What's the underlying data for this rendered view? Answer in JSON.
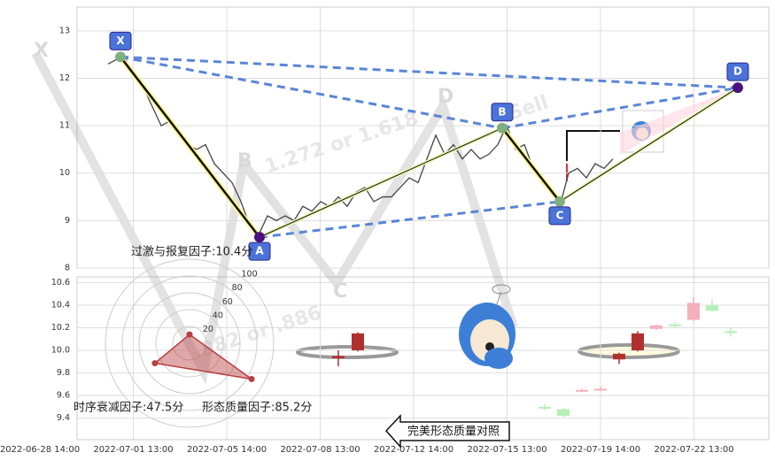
{
  "chart_data": [
    {
      "type": "line",
      "color": "#444",
      "x": [
        0,
        1,
        2,
        3,
        4,
        5,
        6,
        7,
        8,
        9,
        10,
        11,
        12,
        13,
        14,
        15,
        16,
        17,
        18,
        19,
        20,
        21,
        22,
        23,
        24,
        25,
        26,
        27,
        28,
        29,
        30,
        31,
        32,
        33,
        34,
        35,
        36,
        37,
        38,
        39,
        40,
        41,
        42,
        43,
        44,
        45,
        46,
        47,
        48,
        49,
        50,
        51,
        52,
        53,
        54,
        55,
        56,
        57
      ],
      "values": [
        12.3,
        12.4,
        12.4,
        12.0,
        11.8,
        11.4,
        11.0,
        11.1,
        10.8,
        10.6,
        10.5,
        10.6,
        10.2,
        10.0,
        9.8,
        9.4,
        8.9,
        8.7,
        9.1,
        9.0,
        9.1,
        9.0,
        9.3,
        9.2,
        9.4,
        9.3,
        9.5,
        9.3,
        9.6,
        9.7,
        9.4,
        9.5,
        9.5,
        9.7,
        9.9,
        9.8,
        10.3,
        10.8,
        10.4,
        10.6,
        10.3,
        10.5,
        10.3,
        10.4,
        10.6,
        11.0,
        10.5,
        10.6,
        10.1,
        9.8,
        9.6,
        9.3,
        10.0,
        10.1,
        9.9,
        10.2,
        10.1,
        10.3
      ],
      "xlim": [
        -3.5,
        74.6
      ],
      "ylim": [
        8,
        13.5
      ],
      "yticks": [
        8,
        9,
        10,
        11,
        12,
        13
      ],
      "grid": true,
      "pattern": {
        "labels": [
          "X",
          "A",
          "B",
          "C",
          "D"
        ],
        "x": [
          1.4,
          17.1,
          44.5,
          51,
          71.1
        ],
        "values": [
          12.45,
          8.65,
          10.95,
          9.4,
          11.8
        ]
      }
    },
    {
      "type": "candlestick",
      "xlim": [
        -3.5,
        74.6
      ],
      "ylim": [
        9.21,
        10.65
      ],
      "yticks": [
        9.4,
        9.6,
        9.8,
        {
          "value": 10,
          "label": "10.0"
        },
        10.2,
        10.4,
        10.6
      ],
      "grid": true,
      "xtick_labels": [
        "2022-06-28 14:00",
        "2022-07-01 13:00",
        "2022-07-05 14:00",
        "2022-07-08 13:00",
        "2022-07-12 14:00",
        "2022-07-15 13:00",
        "2022-07-19 14:00",
        "2022-07-22 13:00"
      ],
      "candles": [
        {
          "x": 26,
          "open": 9.95,
          "close": 9.93,
          "high": 10.0,
          "low": 9.86,
          "color": "#b03030"
        },
        {
          "x": 28.2,
          "open": 10.0,
          "close": 10.15,
          "high": 10.16,
          "low": 9.99,
          "color": "#b03030"
        },
        {
          "x": 49.3,
          "open": 9.5,
          "close": 9.49,
          "high": 9.52,
          "low": 9.47,
          "color": "#b8efb8"
        },
        {
          "x": 51.4,
          "open": 9.48,
          "close": 9.42,
          "high": 9.49,
          "low": 9.41,
          "color": "#b8efb8"
        },
        {
          "x": 53.5,
          "open": 9.64,
          "close": 9.65,
          "high": 9.66,
          "low": 9.63,
          "color": "#f4b0bc"
        },
        {
          "x": 55.6,
          "open": 9.65,
          "close": 9.66,
          "high": 9.68,
          "low": 9.64,
          "color": "#f4b0bc"
        },
        {
          "x": 57.7,
          "open": 9.97,
          "close": 9.92,
          "high": 9.98,
          "low": 9.88,
          "color": "#b03030"
        },
        {
          "x": 59.8,
          "open": 10.0,
          "close": 10.15,
          "high": 10.17,
          "low": 9.99,
          "color": "#b03030"
        },
        {
          "x": 61.9,
          "open": 10.19,
          "close": 10.22,
          "high": 10.23,
          "low": 10.18,
          "color": "#f4b0bc"
        },
        {
          "x": 64.0,
          "open": 10.22,
          "close": 10.23,
          "high": 10.25,
          "low": 10.2,
          "color": "#b8efb8"
        },
        {
          "x": 66.1,
          "open": 10.27,
          "close": 10.42,
          "high": 10.47,
          "low": 10.26,
          "color": "#f4b0bc"
        },
        {
          "x": 68.2,
          "open": 10.4,
          "close": 10.35,
          "high": 10.45,
          "low": 10.34,
          "color": "#b8efb8"
        },
        {
          "x": 70.3,
          "open": 10.17,
          "close": 10.16,
          "high": 10.2,
          "low": 10.12,
          "color": "#b8efb8"
        }
      ]
    },
    {
      "type": "radar",
      "color": "#b84040",
      "rticks": [
        20,
        40,
        60,
        80,
        100
      ],
      "values": [
        10.4,
        47.5,
        85.2
      ],
      "value_labels": [
        "过激与报复因子:10.4分",
        "时序衰减因子:47.5分",
        "形态质量因子:85.2分"
      ]
    }
  ],
  "watermark": [
    "1.272 or 1.618",
    ".382 or .886",
    "Sell"
  ],
  "button": "完美形态质量对照"
}
